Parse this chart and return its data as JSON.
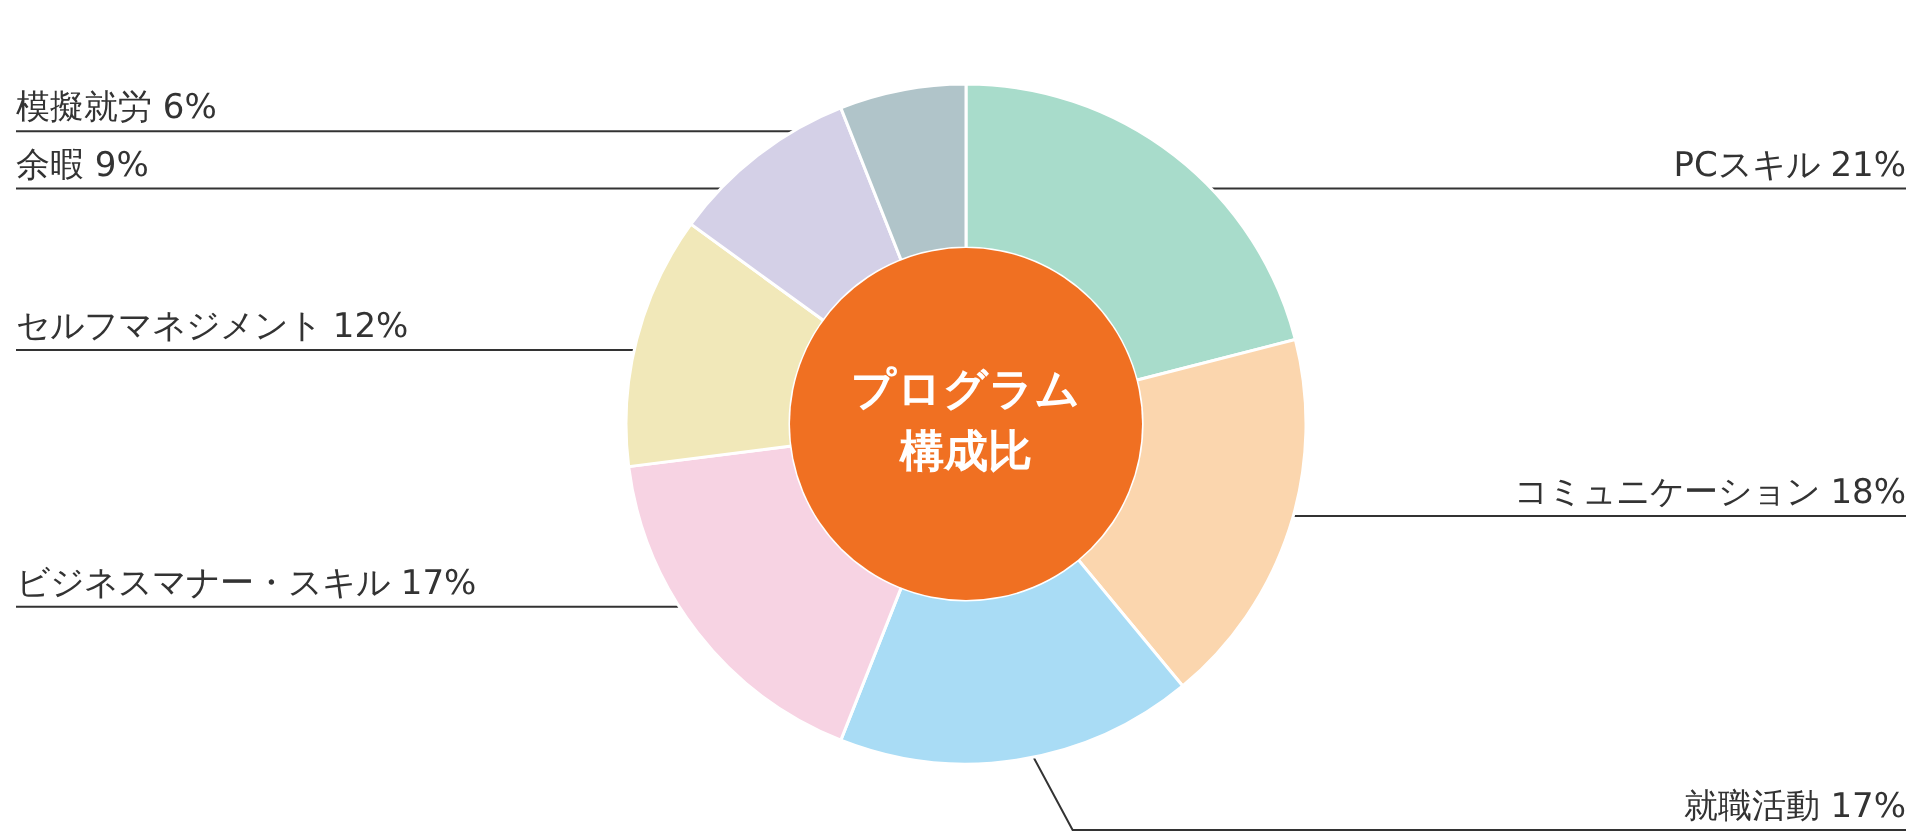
{
  "chart_data": {
    "type": "donut",
    "title": "プログラム構成比",
    "categories": [
      "PCスキル",
      "コミュニケーション",
      "就職活動",
      "ビジネスマナー・スキル",
      "セルフマネジメント",
      "余暇",
      "模擬就労"
    ],
    "values": [
      21,
      18,
      17,
      17,
      12,
      9,
      6
    ],
    "value_labels": [
      "21%",
      "18%",
      "17%",
      "17%",
      "12%",
      "9%",
      "6%"
    ],
    "colors": [
      "#a8dccb",
      "#fbd6ae",
      "#a9dcf5",
      "#f7d3e3",
      "#f1e8b9",
      "#d4d0e7",
      "#b0c4c9"
    ]
  }
}
